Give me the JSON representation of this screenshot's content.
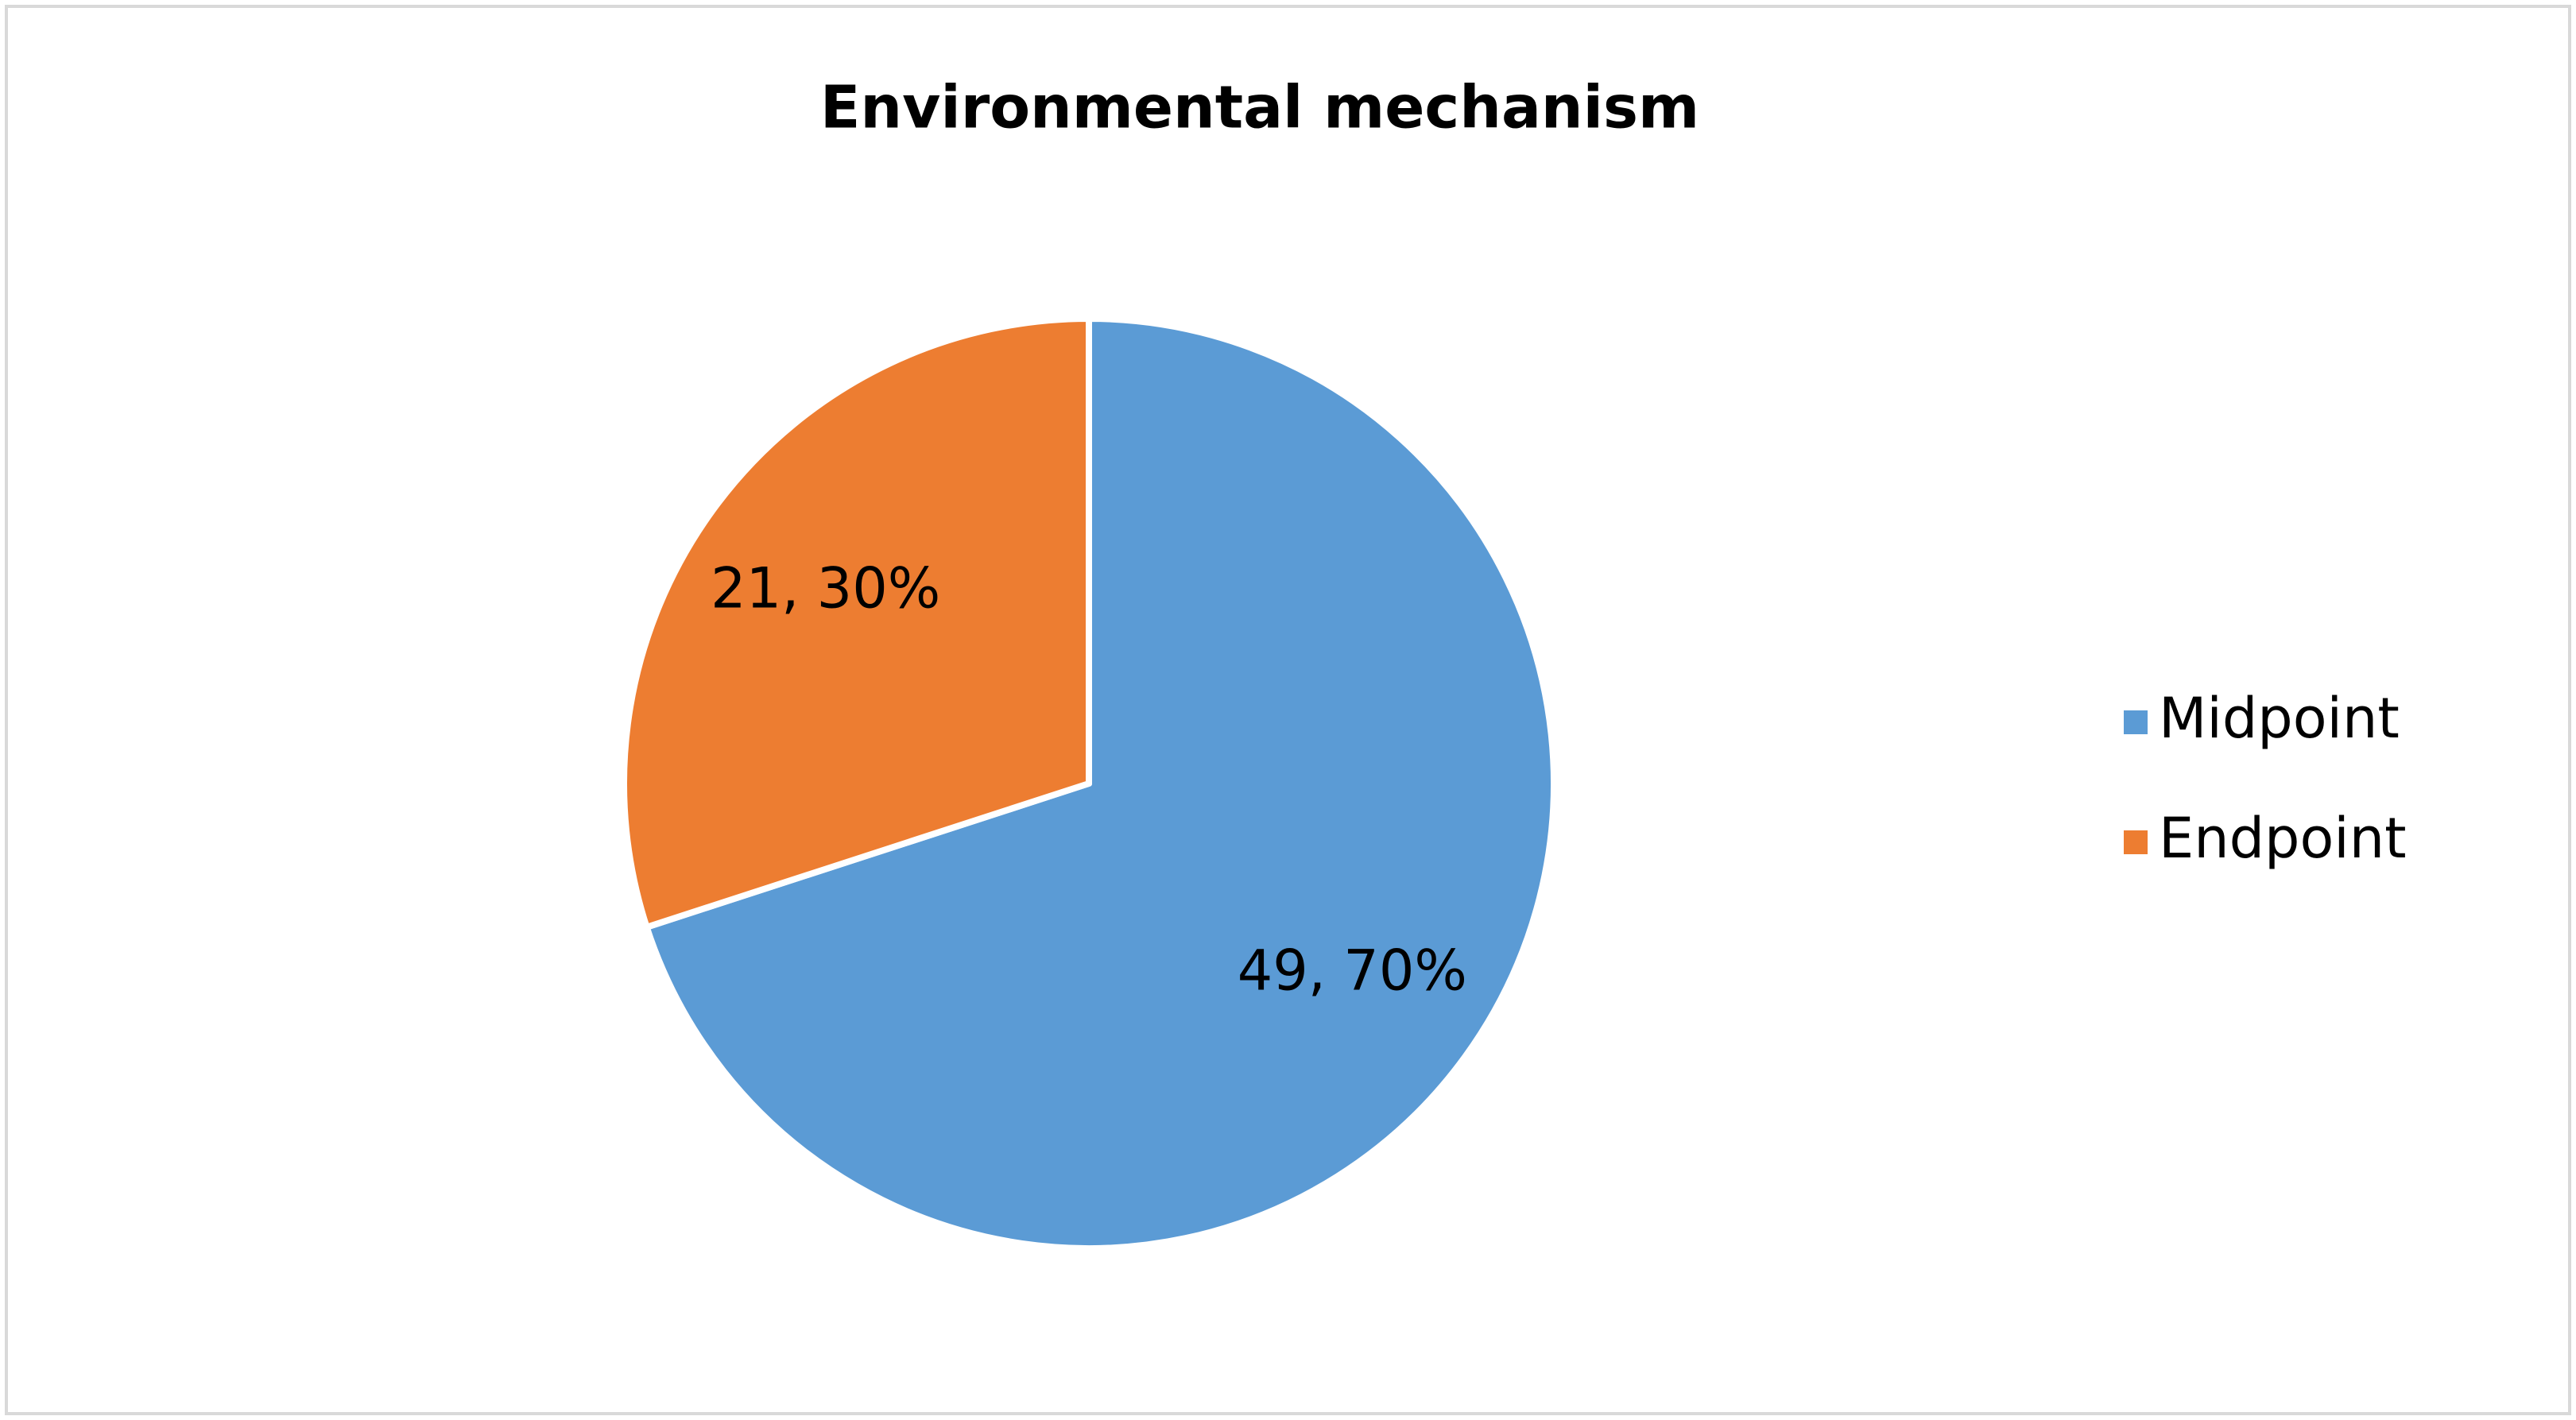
{
  "chart_data": {
    "type": "pie",
    "title": "Environmental mechanism",
    "categories": [
      "Midpoint",
      "Endpoint"
    ],
    "values": [
      49,
      21
    ],
    "value_labels": [
      "49, 70%",
      "21, 30%"
    ],
    "colors": [
      "#5b9bd5",
      "#ed7d31"
    ],
    "legend": "right"
  }
}
